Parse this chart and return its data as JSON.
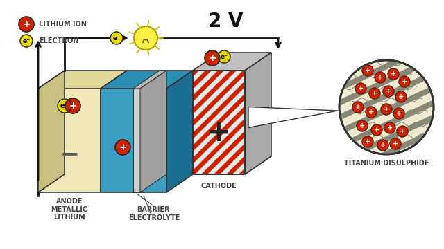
{
  "bg_color": "#ffffff",
  "title": "2 V",
  "anode_face_color": "#f0e8b8",
  "anode_top_color": "#e0d898",
  "anode_side_color": "#c8c080",
  "elec_face_color": "#3a9ec2",
  "elec_top_color": "#2a8eb2",
  "elec_side_color": "#1a6e92",
  "barrier_face_color": "#d0d0d0",
  "barrier_top_color": "#b8b8b8",
  "barrier_side_color": "#a0a0a0",
  "cath_stripe1": "#cc2200",
  "cath_stripe2": "#e8e8e8",
  "cath_top_color": "#c0c0c0",
  "lithium_color": "#cc2200",
  "electron_color": "#e8d800",
  "wire_color": "#111111",
  "label_color": "#444444",
  "label_fontsize": 7.0,
  "title_fontsize": 20,
  "ti_bg_color": "#f0ead0",
  "ti_layer_color": "#888878",
  "labels": {
    "lithium_ion": "LITHIUM ION",
    "electron": "ELECTRON",
    "cathode": "CATHODE",
    "electrolyte": "ELECTROLYTE",
    "barrier": "BARRIER",
    "anode": "ANODE\nMETALLIC\nLITHIUM",
    "titanium": "TITANIUM DISULPHIDE"
  }
}
